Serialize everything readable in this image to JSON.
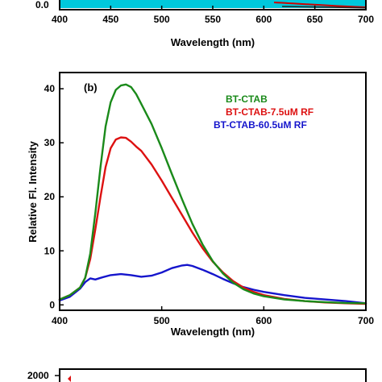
{
  "chart_data": [
    {
      "panel": "top (partially visible)",
      "type": "line",
      "xlabel": "Wavelength (nm)",
      "ylabel": "",
      "xlim": [
        400,
        700
      ],
      "xticks": [
        "400",
        "450",
        "500",
        "550",
        "600",
        "650",
        "700"
      ],
      "yticks_visible": [
        "0.0"
      ],
      "series_colors": [
        "#00c8dc",
        "#cc0000"
      ]
    },
    {
      "panel": "(b)",
      "type": "line",
      "xlabel": "Wavelength (nm)",
      "ylabel": "Relative Fl. Intensity",
      "xlim": [
        400,
        700
      ],
      "ylim": [
        -1,
        43
      ],
      "xticks": [
        "400",
        "500",
        "600",
        "700"
      ],
      "yticks": [
        "0",
        "10",
        "20",
        "30",
        "40"
      ],
      "grid": false,
      "legend_placement": "top-right",
      "series": [
        {
          "name": "BT-CTAB",
          "color": "#1a8a1a",
          "x": [
            400,
            410,
            420,
            425,
            430,
            435,
            440,
            445,
            450,
            455,
            460,
            465,
            470,
            475,
            480,
            490,
            500,
            510,
            520,
            530,
            540,
            550,
            560,
            570,
            580,
            590,
            600,
            620,
            640,
            660,
            680,
            700
          ],
          "y": [
            1.0,
            1.8,
            3.2,
            5.0,
            9.5,
            17.0,
            25.5,
            33.0,
            37.5,
            39.8,
            40.6,
            40.8,
            40.3,
            39.0,
            37.2,
            33.5,
            29.0,
            24.2,
            19.5,
            15.0,
            11.2,
            8.1,
            5.8,
            4.1,
            2.9,
            2.1,
            1.6,
            1.0,
            0.7,
            0.5,
            0.35,
            0.3
          ]
        },
        {
          "name": "BT-CTAB-7.5uM RF",
          "color": "#dd1111",
          "x": [
            400,
            410,
            420,
            425,
            430,
            435,
            440,
            445,
            450,
            455,
            460,
            465,
            470,
            475,
            480,
            490,
            500,
            510,
            520,
            530,
            540,
            550,
            560,
            570,
            580,
            590,
            600,
            620,
            640,
            660,
            680,
            700
          ],
          "y": [
            1.0,
            1.8,
            3.2,
            5.0,
            8.5,
            14.0,
            20.0,
            25.5,
            29.0,
            30.6,
            31.0,
            30.9,
            30.2,
            29.3,
            28.5,
            26.0,
            23.0,
            19.8,
            16.6,
            13.4,
            10.5,
            8.0,
            6.0,
            4.4,
            3.2,
            2.4,
            1.8,
            1.1,
            0.7,
            0.45,
            0.3,
            0.2
          ]
        },
        {
          "name": "BT-CTAB-60.5uM RF",
          "color": "#1515cc",
          "x": [
            400,
            410,
            420,
            425,
            430,
            435,
            440,
            450,
            460,
            470,
            480,
            490,
            500,
            510,
            520,
            525,
            530,
            540,
            550,
            560,
            570,
            580,
            590,
            600,
            620,
            640,
            660,
            680,
            700
          ],
          "y": [
            0.8,
            1.5,
            3.0,
            4.2,
            4.9,
            4.7,
            5.0,
            5.5,
            5.7,
            5.5,
            5.2,
            5.4,
            6.0,
            6.8,
            7.3,
            7.4,
            7.2,
            6.5,
            5.7,
            4.8,
            4.0,
            3.3,
            2.8,
            2.4,
            1.8,
            1.3,
            1.0,
            0.7,
            0.3
          ]
        }
      ]
    },
    {
      "panel": "bottom (partially visible)",
      "type": "line",
      "yticks_visible": [
        "2000"
      ],
      "marker_color": "#dd1111"
    }
  ]
}
